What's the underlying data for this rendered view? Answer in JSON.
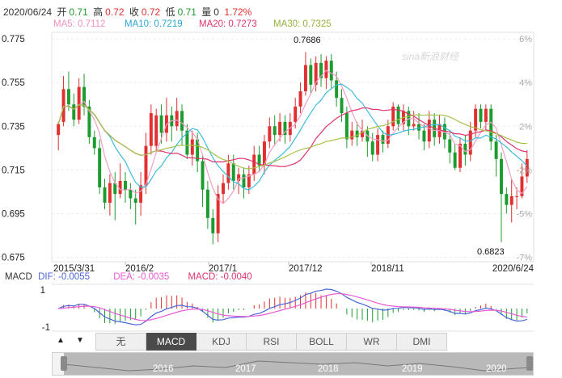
{
  "header": {
    "date": "2020/06/24",
    "open_label": "开",
    "open": "0.71",
    "high_label": "高",
    "high": "0.72",
    "close_label": "收",
    "close": "0.72",
    "low_label": "低",
    "low": "0.71",
    "volume_label": "量",
    "volume": "0",
    "change": "1.72%"
  },
  "ma": {
    "ma5": "MA5: 0.7112",
    "ma10": "MA10: 0.7219",
    "ma20": "MA20: 0.7273",
    "ma30": "MA30: 0.7325"
  },
  "colors": {
    "up": "#e03030",
    "down": "#1c9b2e",
    "ma5": "#f29fc6",
    "ma10": "#3cbcdc",
    "ma20": "#e0336e",
    "ma30": "#a6c24a",
    "dif": "#4a66d8",
    "dea": "#e85ad6"
  },
  "macd": {
    "label": "MACD",
    "dif": "DIF: -0.0055",
    "dea": "DEA: -0.0035",
    "macd": "MACD: -0.0040",
    "y_ticks": [
      "1",
      "-1"
    ]
  },
  "watermark": "sina新浪财经",
  "tabs": [
    {
      "label": "无",
      "active": false
    },
    {
      "label": "MACD",
      "active": true
    },
    {
      "label": "KDJ",
      "active": false
    },
    {
      "label": "RSI",
      "active": false
    },
    {
      "label": "BOLL",
      "active": false
    },
    {
      "label": "WR",
      "active": false
    },
    {
      "label": "DMI",
      "active": false
    }
  ],
  "nav_years": [
    "2016",
    "2017",
    "2018",
    "2019",
    "2020"
  ],
  "arrows": {
    "up": "▲",
    "down": "▼"
  },
  "chart_data": {
    "type": "candlestick",
    "y_ticks": [
      "0.775",
      "0.755",
      "0.735",
      "0.715",
      "0.695",
      "0.675"
    ],
    "y_values": [
      0.775,
      0.755,
      0.735,
      0.715,
      0.695,
      0.675
    ],
    "pct_ticks": [
      "6%",
      "4%",
      "2%",
      "-2%",
      "-5%",
      "-7%"
    ],
    "x_ticks": [
      "2015/3/31",
      "2016/2",
      "2017/1",
      "2017/12",
      "2018/11",
      "2020/6/24"
    ],
    "ylim": [
      0.673,
      0.778
    ],
    "annotations": {
      "max": "0.7686",
      "min": "0.6823"
    },
    "candles": [
      [
        0.731,
        0.736,
        0.737,
        0.724
      ],
      [
        0.737,
        0.752,
        0.758,
        0.735
      ],
      [
        0.752,
        0.745,
        0.76,
        0.742
      ],
      [
        0.745,
        0.738,
        0.75,
        0.735
      ],
      [
        0.738,
        0.753,
        0.757,
        0.736
      ],
      [
        0.753,
        0.744,
        0.759,
        0.74
      ],
      [
        0.744,
        0.73,
        0.747,
        0.727
      ],
      [
        0.73,
        0.725,
        0.733,
        0.722
      ],
      [
        0.725,
        0.707,
        0.729,
        0.704
      ],
      [
        0.707,
        0.7,
        0.711,
        0.697
      ],
      [
        0.7,
        0.709,
        0.713,
        0.694
      ],
      [
        0.709,
        0.704,
        0.714,
        0.692
      ],
      [
        0.704,
        0.71,
        0.718,
        0.702
      ],
      [
        0.71,
        0.706,
        0.714,
        0.7
      ],
      [
        0.706,
        0.702,
        0.709,
        0.697
      ],
      [
        0.702,
        0.7,
        0.706,
        0.69
      ],
      [
        0.7,
        0.708,
        0.714,
        0.694
      ],
      [
        0.708,
        0.726,
        0.732,
        0.704
      ],
      [
        0.726,
        0.741,
        0.745,
        0.722
      ],
      [
        0.726,
        0.74,
        0.743,
        0.724
      ],
      [
        0.74,
        0.732,
        0.745,
        0.727
      ],
      [
        0.732,
        0.74,
        0.748,
        0.728
      ],
      [
        0.74,
        0.735,
        0.744,
        0.728
      ],
      [
        0.735,
        0.742,
        0.748,
        0.733
      ],
      [
        0.742,
        0.733,
        0.745,
        0.726
      ],
      [
        0.733,
        0.722,
        0.736,
        0.72
      ],
      [
        0.722,
        0.729,
        0.733,
        0.717
      ],
      [
        0.729,
        0.719,
        0.732,
        0.714
      ],
      [
        0.719,
        0.706,
        0.722,
        0.698
      ],
      [
        0.706,
        0.693,
        0.71,
        0.688
      ],
      [
        0.693,
        0.686,
        0.697,
        0.681
      ],
      [
        0.686,
        0.704,
        0.708,
        0.682
      ],
      [
        0.704,
        0.709,
        0.713,
        0.7
      ],
      [
        0.709,
        0.718,
        0.722,
        0.706
      ],
      [
        0.718,
        0.71,
        0.722,
        0.706
      ],
      [
        0.71,
        0.713,
        0.716,
        0.704
      ],
      [
        0.713,
        0.707,
        0.716,
        0.702
      ],
      [
        0.707,
        0.713,
        0.717,
        0.704
      ],
      [
        0.713,
        0.722,
        0.726,
        0.71
      ],
      [
        0.722,
        0.717,
        0.726,
        0.714
      ],
      [
        0.717,
        0.728,
        0.731,
        0.713
      ],
      [
        0.728,
        0.735,
        0.739,
        0.725
      ],
      [
        0.735,
        0.731,
        0.74,
        0.726
      ],
      [
        0.731,
        0.737,
        0.741,
        0.728
      ],
      [
        0.737,
        0.731,
        0.74,
        0.727
      ],
      [
        0.731,
        0.737,
        0.741,
        0.728
      ],
      [
        0.737,
        0.744,
        0.748,
        0.734
      ],
      [
        0.744,
        0.751,
        0.755,
        0.741
      ],
      [
        0.751,
        0.763,
        0.769,
        0.749
      ],
      [
        0.763,
        0.754,
        0.766,
        0.75
      ],
      [
        0.754,
        0.764,
        0.767,
        0.751
      ],
      [
        0.764,
        0.757,
        0.768,
        0.753
      ],
      [
        0.757,
        0.765,
        0.767,
        0.752
      ],
      [
        0.765,
        0.756,
        0.768,
        0.752
      ],
      [
        0.756,
        0.748,
        0.76,
        0.744
      ],
      [
        0.748,
        0.741,
        0.752,
        0.737
      ],
      [
        0.741,
        0.729,
        0.744,
        0.725
      ],
      [
        0.729,
        0.733,
        0.737,
        0.726
      ],
      [
        0.733,
        0.73,
        0.737,
        0.726
      ],
      [
        0.73,
        0.733,
        0.738,
        0.728
      ],
      [
        0.733,
        0.728,
        0.735,
        0.721
      ],
      [
        0.728,
        0.722,
        0.732,
        0.719
      ],
      [
        0.722,
        0.731,
        0.734,
        0.719
      ],
      [
        0.731,
        0.727,
        0.733,
        0.723
      ],
      [
        0.727,
        0.735,
        0.738,
        0.725
      ],
      [
        0.735,
        0.744,
        0.746,
        0.733
      ],
      [
        0.744,
        0.736,
        0.745,
        0.733
      ],
      [
        0.736,
        0.742,
        0.745,
        0.733
      ],
      [
        0.742,
        0.735,
        0.744,
        0.731
      ],
      [
        0.735,
        0.736,
        0.742,
        0.733
      ],
      [
        0.736,
        0.733,
        0.741,
        0.729
      ],
      [
        0.733,
        0.728,
        0.736,
        0.724
      ],
      [
        0.728,
        0.738,
        0.742,
        0.725
      ],
      [
        0.738,
        0.73,
        0.741,
        0.726
      ],
      [
        0.73,
        0.736,
        0.74,
        0.727
      ],
      [
        0.736,
        0.729,
        0.739,
        0.725
      ],
      [
        0.729,
        0.723,
        0.732,
        0.718
      ],
      [
        0.723,
        0.716,
        0.727,
        0.715
      ],
      [
        0.716,
        0.727,
        0.73,
        0.714
      ],
      [
        0.727,
        0.722,
        0.731,
        0.717
      ],
      [
        0.722,
        0.733,
        0.737,
        0.719
      ],
      [
        0.733,
        0.743,
        0.745,
        0.73
      ],
      [
        0.743,
        0.737,
        0.745,
        0.734
      ],
      [
        0.737,
        0.743,
        0.745,
        0.733
      ],
      [
        0.743,
        0.728,
        0.745,
        0.724
      ],
      [
        0.728,
        0.72,
        0.731,
        0.712
      ],
      [
        0.72,
        0.704,
        0.723,
        0.682
      ],
      [
        0.704,
        0.699,
        0.707,
        0.695
      ],
      [
        0.699,
        0.703,
        0.711,
        0.691
      ],
      [
        0.703,
        0.703,
        0.707,
        0.697
      ],
      [
        0.703,
        0.712,
        0.718,
        0.702
      ],
      [
        0.712,
        0.72,
        0.724,
        0.709
      ]
    ]
  }
}
